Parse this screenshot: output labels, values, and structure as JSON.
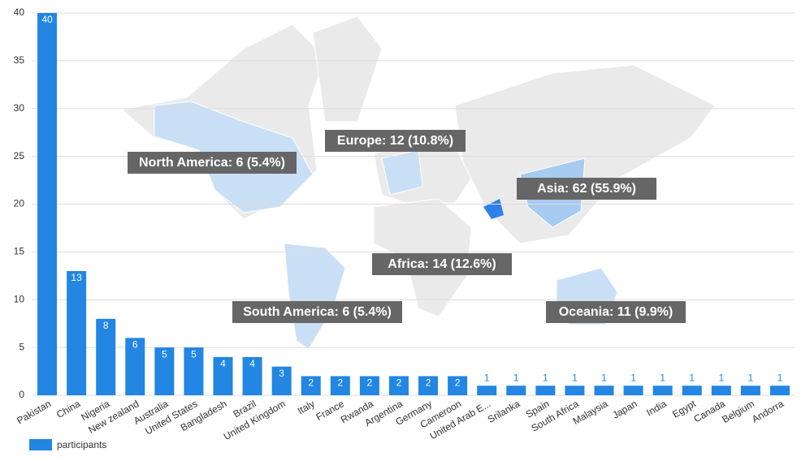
{
  "chart_data": {
    "type": "bar",
    "categories": [
      "Pakistan",
      "China",
      "Nigeria",
      "New zealand",
      "Australia",
      "United States",
      "Bangladesh",
      "Brazil",
      "United Kingdom",
      "Italy",
      "France",
      "Rwanda",
      "Argentina",
      "Germany",
      "Cameroon",
      "United Arab E...",
      "Srilanka",
      "Spain",
      "South Africa",
      "Malaysia",
      "Japan",
      "India",
      "Egypt",
      "Canada",
      "Belgium",
      "Andorra"
    ],
    "series": [
      {
        "name": "participants",
        "color": "#2286e2",
        "values": [
          40,
          13,
          8,
          6,
          5,
          5,
          4,
          4,
          3,
          2,
          2,
          2,
          2,
          2,
          2,
          1,
          1,
          1,
          1,
          1,
          1,
          1,
          1,
          1,
          1,
          1
        ]
      }
    ],
    "ylim": [
      0,
      40
    ],
    "yticks": [
      0,
      5,
      10,
      15,
      20,
      25,
      30,
      35,
      40
    ],
    "grid": true,
    "annotations": [
      "North America: 6 (5.4%)",
      "Europe: 12 (10.8%)",
      "Asia: 62 (55.9%)",
      "Africa: 14 (12.6%)",
      "South America: 6 (5.4%)",
      "Oceania: 11 (9.9%)"
    ],
    "legend": "bottom-left"
  }
}
